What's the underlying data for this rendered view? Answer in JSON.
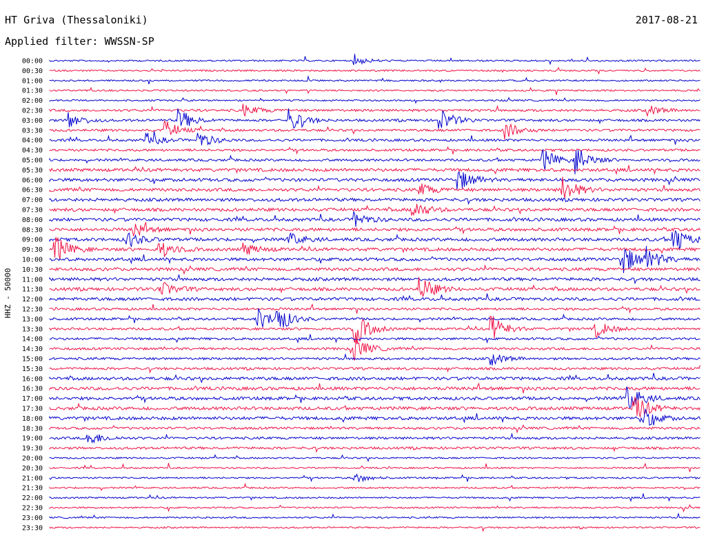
{
  "header": {
    "station": "HT Griva (Thessaloniki)",
    "date": "2017-08-21",
    "filter": "Applied filter: WWSSN-SP"
  },
  "chart_data": {
    "type": "line",
    "title": "HT Griva (Thessaloniki)",
    "subtitle": "Applied filter: WWSSN-SP",
    "date": "2017-08-21",
    "ylabel": "HHZ - 50000",
    "row_labels": [
      "00:00",
      "00:30",
      "01:00",
      "01:30",
      "02:00",
      "02:30",
      "03:00",
      "03:30",
      "04:00",
      "04:30",
      "05:00",
      "05:30",
      "06:00",
      "06:30",
      "07:00",
      "07:30",
      "08:00",
      "08:30",
      "09:00",
      "09:30",
      "10:00",
      "10:30",
      "11:00",
      "11:30",
      "12:00",
      "12:30",
      "13:00",
      "13:30",
      "14:00",
      "14:30",
      "15:00",
      "15:30",
      "16:00",
      "16:30",
      "17:00",
      "17:30",
      "18:00",
      "18:30",
      "19:00",
      "19:30",
      "20:00",
      "20:30",
      "21:00",
      "21:30",
      "22:00",
      "22:30",
      "23:00",
      "23:30"
    ],
    "row_colors": [
      "#0000cc",
      "#ee1144"
    ],
    "row_activity": [
      1,
      1,
      1,
      1,
      1,
      2,
      2,
      2,
      2,
      2,
      2,
      3,
      3,
      3,
      3,
      3,
      3,
      3,
      3,
      3,
      3,
      3,
      3,
      3,
      3,
      2,
      2,
      2,
      2,
      2,
      2,
      2,
      3,
      3,
      3,
      3,
      3,
      2,
      2,
      2,
      1,
      1,
      1,
      1,
      1,
      1,
      1,
      1
    ],
    "events": [
      {
        "row": 0,
        "x": 0.47,
        "amp": 0.5
      },
      {
        "row": 5,
        "x": 0.3,
        "amp": 0.7
      },
      {
        "row": 5,
        "x": 0.92,
        "amp": 0.6
      },
      {
        "row": 6,
        "x": 0.03,
        "amp": 1.0
      },
      {
        "row": 6,
        "x": 0.2,
        "amp": 1.3
      },
      {
        "row": 6,
        "x": 0.37,
        "amp": 1.3
      },
      {
        "row": 6,
        "x": 0.6,
        "amp": 1.4
      },
      {
        "row": 7,
        "x": 0.18,
        "amp": 1.0
      },
      {
        "row": 7,
        "x": 0.7,
        "amp": 1.0
      },
      {
        "row": 8,
        "x": 0.15,
        "amp": 0.8
      },
      {
        "row": 8,
        "x": 0.23,
        "amp": 1.0
      },
      {
        "row": 10,
        "x": 0.76,
        "amp": 1.2
      },
      {
        "row": 10,
        "x": 0.81,
        "amp": 1.5
      },
      {
        "row": 12,
        "x": 0.63,
        "amp": 1.2
      },
      {
        "row": 13,
        "x": 0.57,
        "amp": 0.7
      },
      {
        "row": 13,
        "x": 0.79,
        "amp": 1.5
      },
      {
        "row": 15,
        "x": 0.56,
        "amp": 1.0
      },
      {
        "row": 16,
        "x": 0.47,
        "amp": 0.8
      },
      {
        "row": 17,
        "x": 0.13,
        "amp": 0.8
      },
      {
        "row": 18,
        "x": 0.12,
        "amp": 1.0
      },
      {
        "row": 18,
        "x": 0.37,
        "amp": 0.7
      },
      {
        "row": 18,
        "x": 0.96,
        "amp": 1.5
      },
      {
        "row": 19,
        "x": 0.01,
        "amp": 1.5
      },
      {
        "row": 19,
        "x": 0.17,
        "amp": 1.0
      },
      {
        "row": 19,
        "x": 0.3,
        "amp": 0.7
      },
      {
        "row": 20,
        "x": 0.88,
        "amp": 2.0
      },
      {
        "row": 20,
        "x": 0.92,
        "amp": 1.2
      },
      {
        "row": 23,
        "x": 0.17,
        "amp": 1.0
      },
      {
        "row": 23,
        "x": 0.57,
        "amp": 1.5
      },
      {
        "row": 26,
        "x": 0.32,
        "amp": 1.3
      },
      {
        "row": 26,
        "x": 0.35,
        "amp": 1.5
      },
      {
        "row": 27,
        "x": 0.47,
        "amp": 2.0
      },
      {
        "row": 27,
        "x": 0.68,
        "amp": 1.6
      },
      {
        "row": 27,
        "x": 0.84,
        "amp": 1.0
      },
      {
        "row": 29,
        "x": 0.47,
        "amp": 1.3
      },
      {
        "row": 30,
        "x": 0.68,
        "amp": 0.7
      },
      {
        "row": 34,
        "x": 0.89,
        "amp": 1.5
      },
      {
        "row": 35,
        "x": 0.9,
        "amp": 1.6
      },
      {
        "row": 36,
        "x": 0.91,
        "amp": 1.3
      },
      {
        "row": 38,
        "x": 0.06,
        "amp": 0.9
      },
      {
        "row": 42,
        "x": 0.47,
        "amp": 0.6
      }
    ]
  }
}
